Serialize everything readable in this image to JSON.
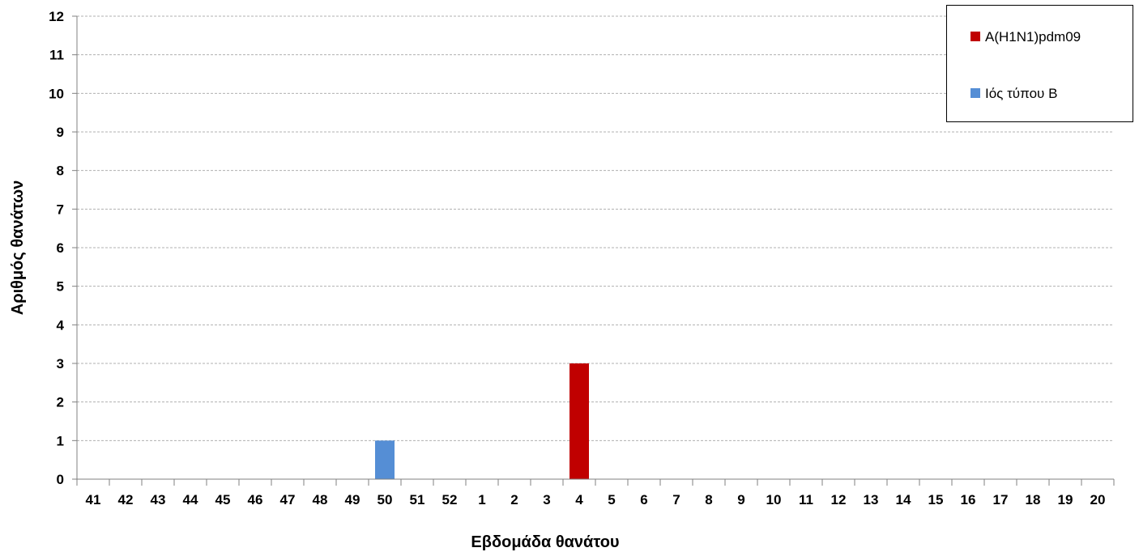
{
  "chart_data": {
    "type": "bar",
    "xlabel": "Εβδομάδα θανάτου",
    "ylabel": "Αριθμός θανάτων",
    "ylim": [
      0,
      12
    ],
    "yticks": [
      0,
      1,
      2,
      3,
      4,
      5,
      6,
      7,
      8,
      9,
      10,
      11,
      12
    ],
    "grid": true,
    "legend_position": "top-right",
    "categories": [
      "41",
      "42",
      "43",
      "44",
      "45",
      "46",
      "47",
      "48",
      "49",
      "50",
      "51",
      "52",
      "1",
      "2",
      "3",
      "4",
      "5",
      "6",
      "7",
      "8",
      "9",
      "10",
      "11",
      "12",
      "13",
      "14",
      "15",
      "16",
      "17",
      "18",
      "19",
      "20"
    ],
    "series": [
      {
        "name": "A(H1N1)pdm09",
        "color": "#C00000",
        "values": [
          0,
          0,
          0,
          0,
          0,
          0,
          0,
          0,
          0,
          0,
          0,
          0,
          0,
          0,
          0,
          3,
          0,
          0,
          0,
          0,
          0,
          0,
          0,
          0,
          0,
          0,
          0,
          0,
          0,
          0,
          0,
          0
        ]
      },
      {
        "name": "Ιός τύπου Β",
        "color": "#558ED5",
        "values": [
          0,
          0,
          0,
          0,
          0,
          0,
          0,
          0,
          0,
          1,
          0,
          0,
          0,
          0,
          0,
          0,
          0,
          0,
          0,
          0,
          0,
          0,
          0,
          0,
          0,
          0,
          0,
          0,
          0,
          0,
          0,
          0
        ]
      }
    ]
  }
}
